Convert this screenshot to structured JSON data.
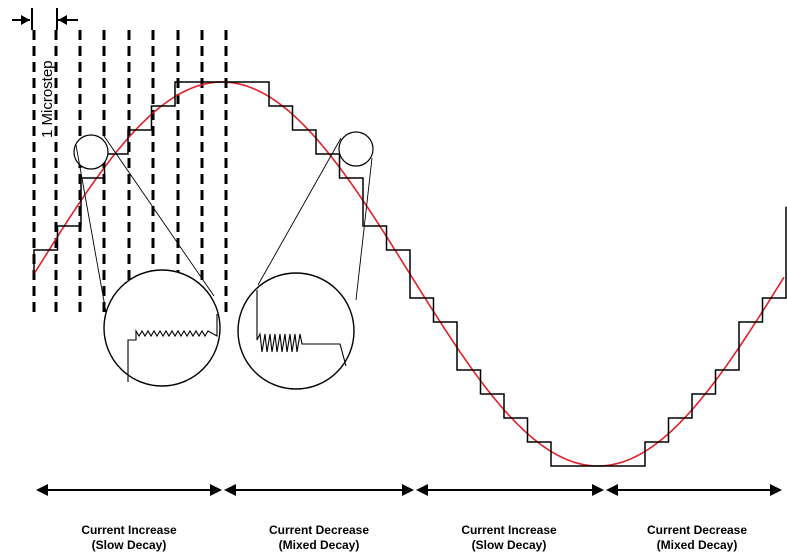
{
  "microstep_label": "1 Microstep",
  "regions": [
    {
      "line1": "Current Increase",
      "line2": "(Slow Decay)"
    },
    {
      "line1": "Current Decrease",
      "line2": "(Mixed Decay)"
    },
    {
      "line1": "Current Increase",
      "line2": "(Slow Decay)"
    },
    {
      "line1": "Current Decrease",
      "line2": "(Mixed Decay)"
    }
  ],
  "colors": {
    "sine": "#e0202a",
    "ink": "#000000"
  }
}
